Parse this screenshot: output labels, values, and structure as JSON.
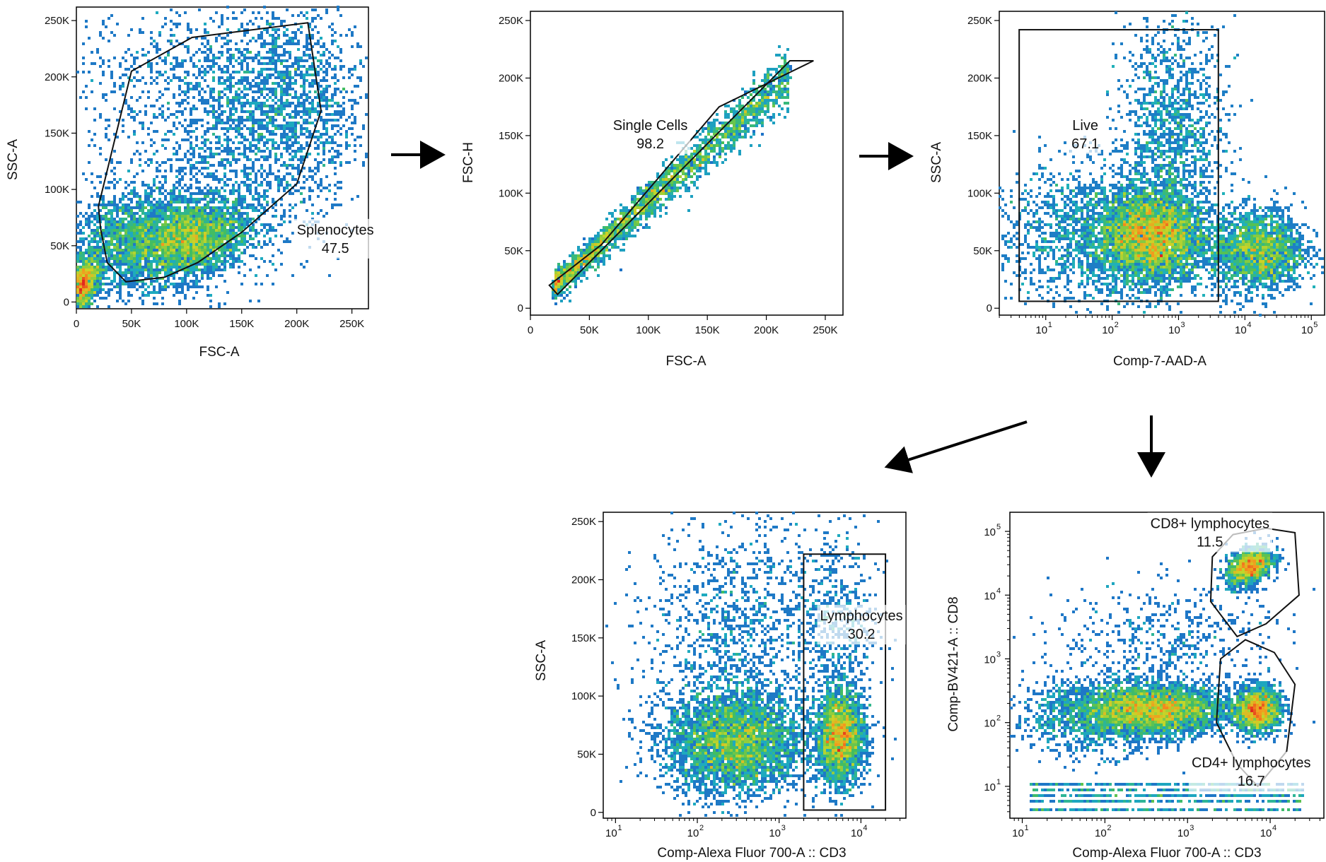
{
  "chart_data": [
    {
      "id": "p1",
      "type": "scatter",
      "subtype": "flow-cytometry-density",
      "xlabel": "FSC-A",
      "ylabel": "SSC-A",
      "xscale": "linear",
      "yscale": "linear",
      "xlim": [
        0,
        265000
      ],
      "ylim": [
        -6000,
        262000
      ],
      "xticks": [
        {
          "v": 0,
          "label": "0"
        },
        {
          "v": 50000,
          "label": "50K"
        },
        {
          "v": 100000,
          "label": "100K"
        },
        {
          "v": 150000,
          "label": "150K"
        },
        {
          "v": 200000,
          "label": "200K"
        },
        {
          "v": 250000,
          "label": "250K"
        }
      ],
      "yticks": [
        {
          "v": 0,
          "label": "0"
        },
        {
          "v": 50000,
          "label": "50K"
        },
        {
          "v": 100000,
          "label": "100K"
        },
        {
          "v": 150000,
          "label": "150K"
        },
        {
          "v": 200000,
          "label": "200K"
        },
        {
          "v": 250000,
          "label": "250K"
        }
      ],
      "populations": [
        {
          "x": 105000,
          "y": 55000,
          "sx": 26000,
          "sy": 18000,
          "rho": 0.3,
          "w": 0.3
        },
        {
          "x": 50000,
          "y": 55000,
          "sx": 28000,
          "sy": 22000,
          "rho": 0.2,
          "w": 0.2
        },
        {
          "x": 5000,
          "y": 15000,
          "sx": 8000,
          "sy": 12000,
          "rho": 0.4,
          "w": 0.14
        },
        {
          "x": 150000,
          "y": 130000,
          "sx": 55000,
          "sy": 55000,
          "rho": 0.3,
          "w": 0.18
        },
        {
          "x": 120000,
          "y": 200000,
          "sx": 65000,
          "sy": 35000,
          "rho": 0.0,
          "w": 0.1
        },
        {
          "x": 200000,
          "y": 180000,
          "sx": 30000,
          "sy": 45000,
          "rho": 0.0,
          "w": 0.08
        }
      ],
      "gates": [
        {
          "name": "Splenocytes",
          "value": "47.5",
          "shape": "polygon",
          "points": [
            [
              22000,
              65000
            ],
            [
              20000,
              85000
            ],
            [
              50000,
              205000
            ],
            [
              105000,
              235000
            ],
            [
              210000,
              248000
            ],
            [
              222000,
              170000
            ],
            [
              200000,
              105000
            ],
            [
              150000,
              62000
            ],
            [
              110000,
              35000
            ],
            [
              80000,
              22000
            ],
            [
              45000,
              18000
            ],
            [
              28000,
              35000
            ]
          ],
          "label_at": [
            200000,
            60000
          ]
        }
      ]
    },
    {
      "id": "p2",
      "type": "scatter",
      "subtype": "flow-cytometry-density",
      "xlabel": "FSC-A",
      "ylabel": "FSC-H",
      "xscale": "linear",
      "yscale": "linear",
      "xlim": [
        0,
        265000
      ],
      "ylim": [
        -6000,
        258000
      ],
      "xticks": [
        {
          "v": 0,
          "label": "0"
        },
        {
          "v": 50000,
          "label": "50K"
        },
        {
          "v": 100000,
          "label": "100K"
        },
        {
          "v": 150000,
          "label": "150K"
        },
        {
          "v": 200000,
          "label": "200K"
        },
        {
          "v": 250000,
          "label": "250K"
        }
      ],
      "yticks": [
        {
          "v": 0,
          "label": "0"
        },
        {
          "v": 50000,
          "label": "50K"
        },
        {
          "v": 100000,
          "label": "100K"
        },
        {
          "v": 150000,
          "label": "150K"
        },
        {
          "v": 200000,
          "label": "200K"
        },
        {
          "v": 250000,
          "label": "250K"
        }
      ],
      "diagonal": {
        "x0": 20000,
        "x1": 220000,
        "slope": 0.92,
        "intercept": 2000,
        "spread": 4000
      },
      "gates": [
        {
          "name": "Single Cells",
          "value": "98.2",
          "shape": "polygon",
          "points": [
            [
              16000,
              20000
            ],
            [
              23000,
              12000
            ],
            [
              220000,
              215000
            ],
            [
              240000,
              215000
            ],
            [
              160000,
              175000
            ],
            [
              60000,
              55000
            ]
          ],
          "label_at": [
            70000,
            155000
          ]
        }
      ]
    },
    {
      "id": "p3",
      "type": "scatter",
      "subtype": "flow-cytometry-density",
      "xlabel": "Comp-7-AAD-A",
      "ylabel": "SSC-A",
      "xscale": "log",
      "yscale": "linear",
      "xlim": [
        0.3,
        5.2
      ],
      "ylim": [
        -6000,
        258000
      ],
      "xticks": [
        {
          "v": 1,
          "label": "10",
          "exp": "1"
        },
        {
          "v": 2,
          "label": "10",
          "exp": "2"
        },
        {
          "v": 3,
          "label": "10",
          "exp": "3"
        },
        {
          "v": 4,
          "label": "10",
          "exp": "4"
        },
        {
          "v": 5,
          "label": "10",
          "exp": "5"
        }
      ],
      "yticks": [
        {
          "v": 0,
          "label": "0"
        },
        {
          "v": 50000,
          "label": "50K"
        },
        {
          "v": 100000,
          "label": "100K"
        },
        {
          "v": 150000,
          "label": "150K"
        },
        {
          "v": 200000,
          "label": "200K"
        },
        {
          "v": 250000,
          "label": "250K"
        }
      ],
      "populations": [
        {
          "x": 2.6,
          "y": 62000,
          "sx": 0.4,
          "sy": 20000,
          "rho": 0,
          "w": 0.4
        },
        {
          "x": 1.8,
          "y": 65000,
          "sx": 0.8,
          "sy": 30000,
          "rho": 0,
          "w": 0.2
        },
        {
          "x": 4.2,
          "y": 50000,
          "sx": 0.35,
          "sy": 18000,
          "rho": 0,
          "w": 0.22
        },
        {
          "x": 2.9,
          "y": 150000,
          "sx": 0.4,
          "sy": 50000,
          "rho": 0,
          "w": 0.15
        }
      ],
      "gates": [
        {
          "name": "Live",
          "value": "67.1",
          "shape": "rect",
          "points": [
            [
              0.6,
              6000
            ],
            [
              3.6,
              242000
            ]
          ],
          "label_at": [
            1.4,
            155000
          ]
        }
      ]
    },
    {
      "id": "p4",
      "type": "scatter",
      "subtype": "flow-cytometry-density",
      "xlabel": "Comp-Alexa Fluor 700-A :: CD3",
      "ylabel": "SSC-A",
      "xscale": "log",
      "yscale": "linear",
      "xlim": [
        0.85,
        4.55
      ],
      "ylim": [
        -5000,
        258000
      ],
      "xticks": [
        {
          "v": 1,
          "label": "10",
          "exp": "1"
        },
        {
          "v": 2,
          "label": "10",
          "exp": "2"
        },
        {
          "v": 3,
          "label": "10",
          "exp": "3"
        },
        {
          "v": 4,
          "label": "10",
          "exp": "4"
        }
      ],
      "yticks": [
        {
          "v": 0,
          "label": "0"
        },
        {
          "v": 50000,
          "label": "50K"
        },
        {
          "v": 100000,
          "label": "100K"
        },
        {
          "v": 150000,
          "label": "150K"
        },
        {
          "v": 200000,
          "label": "200K"
        },
        {
          "v": 250000,
          "label": "250K"
        }
      ],
      "populations": [
        {
          "x": 2.45,
          "y": 60000,
          "sx": 0.42,
          "sy": 22000,
          "rho": 0,
          "w": 0.45
        },
        {
          "x": 3.75,
          "y": 65000,
          "sx": 0.15,
          "sy": 20000,
          "rho": 0,
          "w": 0.28
        },
        {
          "x": 2.5,
          "y": 150000,
          "sx": 0.55,
          "sy": 55000,
          "rho": 0,
          "w": 0.15
        },
        {
          "x": 3.7,
          "y": 160000,
          "sx": 0.25,
          "sy": 45000,
          "rho": 0,
          "w": 0.06
        }
      ],
      "gates": [
        {
          "name": "Lymphocytes",
          "value": "30.2",
          "shape": "rect",
          "points": [
            [
              3.3,
              2000
            ],
            [
              4.3,
              222000
            ]
          ],
          "label_at": [
            3.5,
            165000
          ]
        }
      ]
    },
    {
      "id": "p5",
      "type": "scatter",
      "subtype": "flow-cytometry-density",
      "xlabel": "Comp-Alexa Fluor 700-A :: CD3",
      "ylabel": "Comp-BV421-A :: CD8",
      "xscale": "log",
      "yscale": "log",
      "xlim": [
        0.85,
        4.65
      ],
      "ylim": [
        0.5,
        5.3
      ],
      "xticks": [
        {
          "v": 1,
          "label": "10",
          "exp": "1"
        },
        {
          "v": 2,
          "label": "10",
          "exp": "2"
        },
        {
          "v": 3,
          "label": "10",
          "exp": "3"
        },
        {
          "v": 4,
          "label": "10",
          "exp": "4"
        }
      ],
      "yticks": [
        {
          "v": 1,
          "label": "10",
          "exp": "1"
        },
        {
          "v": 2,
          "label": "10",
          "exp": "2"
        },
        {
          "v": 3,
          "label": "10",
          "exp": "3"
        },
        {
          "v": 4,
          "label": "10",
          "exp": "4"
        },
        {
          "v": 5,
          "label": "10",
          "exp": "5"
        }
      ],
      "populations": [
        {
          "x": 2.6,
          "y": 2.2,
          "sx": 0.45,
          "sy": 0.2,
          "rho": 0,
          "w": 0.42
        },
        {
          "x": 3.85,
          "y": 2.2,
          "sx": 0.14,
          "sy": 0.18,
          "rho": 0,
          "w": 0.18
        },
        {
          "x": 3.75,
          "y": 4.45,
          "sx": 0.14,
          "sy": 0.15,
          "rho": 0.4,
          "w": 0.14
        },
        {
          "x": 1.8,
          "y": 2.1,
          "sx": 0.45,
          "sy": 0.3,
          "rho": 0,
          "w": 0.12
        },
        {
          "x": 2.8,
          "y": 3.3,
          "sx": 0.7,
          "sy": 0.45,
          "rho": 0,
          "w": 0.06
        }
      ],
      "floor_rows": [
        0.65,
        0.75,
        0.85,
        0.95,
        1.05
      ],
      "gates": [
        {
          "name": "CD8+ lymphocytes",
          "value": "11.5",
          "shape": "polygon",
          "points": [
            [
              3.3,
              4.6
            ],
            [
              3.55,
              4.95
            ],
            [
              3.95,
              5.05
            ],
            [
              4.3,
              4.98
            ],
            [
              4.35,
              4.0
            ],
            [
              3.95,
              3.55
            ],
            [
              3.6,
              3.35
            ],
            [
              3.28,
              3.9
            ]
          ],
          "label_at": [
            2.55,
            5.05
          ]
        },
        {
          "name": "CD4+ lymphocytes",
          "value": "16.7",
          "shape": "polygon",
          "points": [
            [
              3.4,
              3.0
            ],
            [
              3.7,
              3.3
            ],
            [
              4.05,
              3.1
            ],
            [
              4.3,
              2.6
            ],
            [
              4.2,
              1.55
            ],
            [
              3.85,
              1.0
            ],
            [
              3.6,
              1.35
            ],
            [
              3.35,
              2.0
            ]
          ],
          "label_at": [
            3.05,
            1.3
          ]
        }
      ]
    }
  ]
}
